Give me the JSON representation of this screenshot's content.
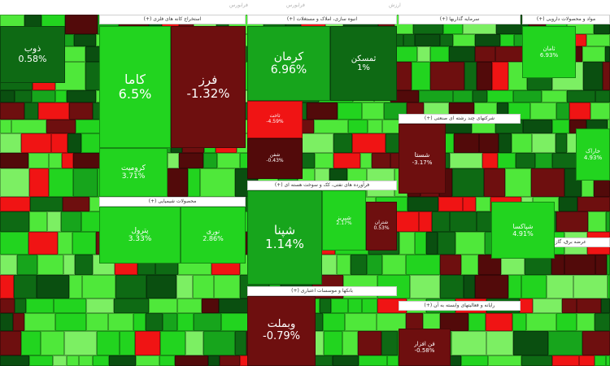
{
  "top_labels": [
    "فرابورس",
    "فرابورس",
    "ارزش"
  ],
  "colors": {
    "strong_up": "#22d41f",
    "up": "#4fe83a",
    "light_up": "#7cef63",
    "mid_green": "#17a51c",
    "dark_green": "#0e6a14",
    "deep_green": "#0a4f10",
    "dark_red": "#6e0f0f",
    "deep_red": "#520a0a",
    "red": "#f01414"
  },
  "chart_data": {
    "type": "heatmap",
    "sections": [
      {
        "name": "استخراج کانه های فلزی (+)"
      },
      {
        "name": "انبوه سازی، املاک و مستغلات (+)"
      },
      {
        "name": "سرمایه گذاریها (+)"
      },
      {
        "name": "مواد و محصولات دارویی (+)"
      },
      {
        "name": "محصولات شیمیایی (+)"
      },
      {
        "name": "فرآورده های نفتی، کک و سوخت هسته ای (+)"
      },
      {
        "name": "شرکتهای چند رشته ای صنعتی (+)"
      },
      {
        "name": "بانکها و موسسات اعتباری (+)"
      },
      {
        "name": "رایانه و فعالیتهای وابسته به آن (+)"
      },
      {
        "name": "عرضه برق، گاز (+)"
      }
    ],
    "tiles": [
      {
        "name": "ذوب",
        "value": "0.58%"
      },
      {
        "name": "کاما",
        "value": "6.5%"
      },
      {
        "name": "فرز",
        "value": "-1.32%"
      },
      {
        "name": "کرمان",
        "value": "6.96%"
      },
      {
        "name": "ثمسکن",
        "value": "1%"
      },
      {
        "name": "کروميت",
        "value": "3.71%"
      },
      {
        "name": "پترول",
        "value": "3.33%"
      },
      {
        "name": "نوری",
        "value": "2.86%"
      },
      {
        "name": "شپنا",
        "value": "1.14%"
      },
      {
        "name": "ثامان",
        "value": "6.93%"
      },
      {
        "name": "شستا",
        "value": "-3.17%"
      },
      {
        "name": "خاراک",
        "value": "4.93%"
      },
      {
        "name": "شبریز",
        "value": "2.17%"
      },
      {
        "name": "وبملت",
        "value": "-0.79%"
      },
      {
        "name": "شپاکسا",
        "value": "4.91%"
      },
      {
        "name": "فن افزار",
        "value": "-0.58%"
      },
      {
        "name": "ثاخت",
        "value": "-4.59%"
      },
      {
        "name": "شفن",
        "value": "-0.43%"
      },
      {
        "name": "شتران",
        "value": "0.53%"
      }
    ]
  }
}
